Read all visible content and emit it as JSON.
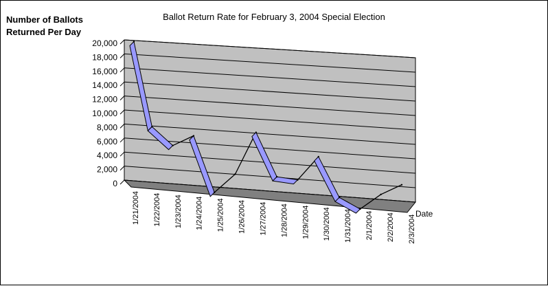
{
  "chart_data": {
    "type": "line",
    "title": "Ballot Return Rate for February 3, 2004 Special Election",
    "ylabel_lines": [
      "Number of Ballots",
      "Returned Per Day"
    ],
    "xlabel": "Date",
    "ylim": [
      0,
      20000
    ],
    "ytick_labels": [
      "0",
      "2,000",
      "4,000",
      "6,000",
      "8,000",
      "10,000",
      "12,000",
      "14,000",
      "16,000",
      "18,000",
      "20,000"
    ],
    "categories": [
      "1/21/2004",
      "1/22/2004",
      "1/23/2004",
      "1/24/2004",
      "1/25/2004",
      "1/26/2004",
      "1/27/2004",
      "1/28/2004",
      "1/29/2004",
      "1/30/2004",
      "1/31/2004",
      "2/1/2004",
      "2/2/2004",
      "2/3/2004"
    ],
    "series": [
      {
        "values": [
          19800,
          8200,
          5900,
          7600,
          0,
          2900,
          9100,
          3200,
          3100,
          6700,
          1300,
          0,
          2400,
          4100
        ]
      }
    ],
    "grid": true,
    "style": "3d-line",
    "colors": {
      "ribbon": "#9999ff",
      "wall": "#c0c0c0",
      "floor": "#808080",
      "line": "#000000"
    }
  }
}
